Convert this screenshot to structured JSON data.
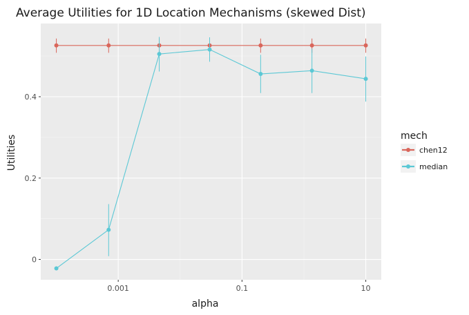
{
  "chart_data": {
    "type": "line",
    "title": "Average Utilities for 1D Location Mechanisms (skewed Dist)",
    "xlabel": "alpha",
    "ylabel": "Utilities",
    "x_scale": "log10",
    "x": [
      0.0001,
      0.0007,
      0.0046,
      0.03,
      0.2,
      1.35,
      10
    ],
    "xlim": [
      5.6e-05,
      17.8
    ],
    "ylim": [
      -0.05,
      0.58
    ],
    "x_ticks": [
      {
        "value": 0.001,
        "label": "0.001"
      },
      {
        "value": 0.1,
        "label": "0.1"
      },
      {
        "value": 10,
        "label": "10"
      }
    ],
    "y_ticks": [
      {
        "value": 0,
        "label": "0"
      },
      {
        "value": 0.2,
        "label": "0.2"
      },
      {
        "value": 0.4,
        "label": "0.4"
      }
    ],
    "grid": true,
    "legend": {
      "title": "mech",
      "position": "right"
    },
    "series": [
      {
        "name": "chen12",
        "color": "#D9665B",
        "values": [
          0.526,
          0.526,
          0.526,
          0.526,
          0.526,
          0.526,
          0.526
        ],
        "err_low": [
          0.508,
          0.508,
          0.508,
          0.508,
          0.508,
          0.508,
          0.508
        ],
        "err_high": [
          0.543,
          0.543,
          0.543,
          0.543,
          0.543,
          0.543,
          0.543
        ]
      },
      {
        "name": "median",
        "color": "#5BC8D5",
        "values": [
          -0.022,
          0.073,
          0.505,
          0.516,
          0.456,
          0.464,
          0.444
        ],
        "err_low": [
          -0.022,
          0.008,
          0.462,
          0.486,
          0.409,
          0.409,
          0.388
        ],
        "err_high": [
          -0.022,
          0.136,
          0.547,
          0.546,
          0.503,
          0.518,
          0.499
        ]
      }
    ]
  }
}
